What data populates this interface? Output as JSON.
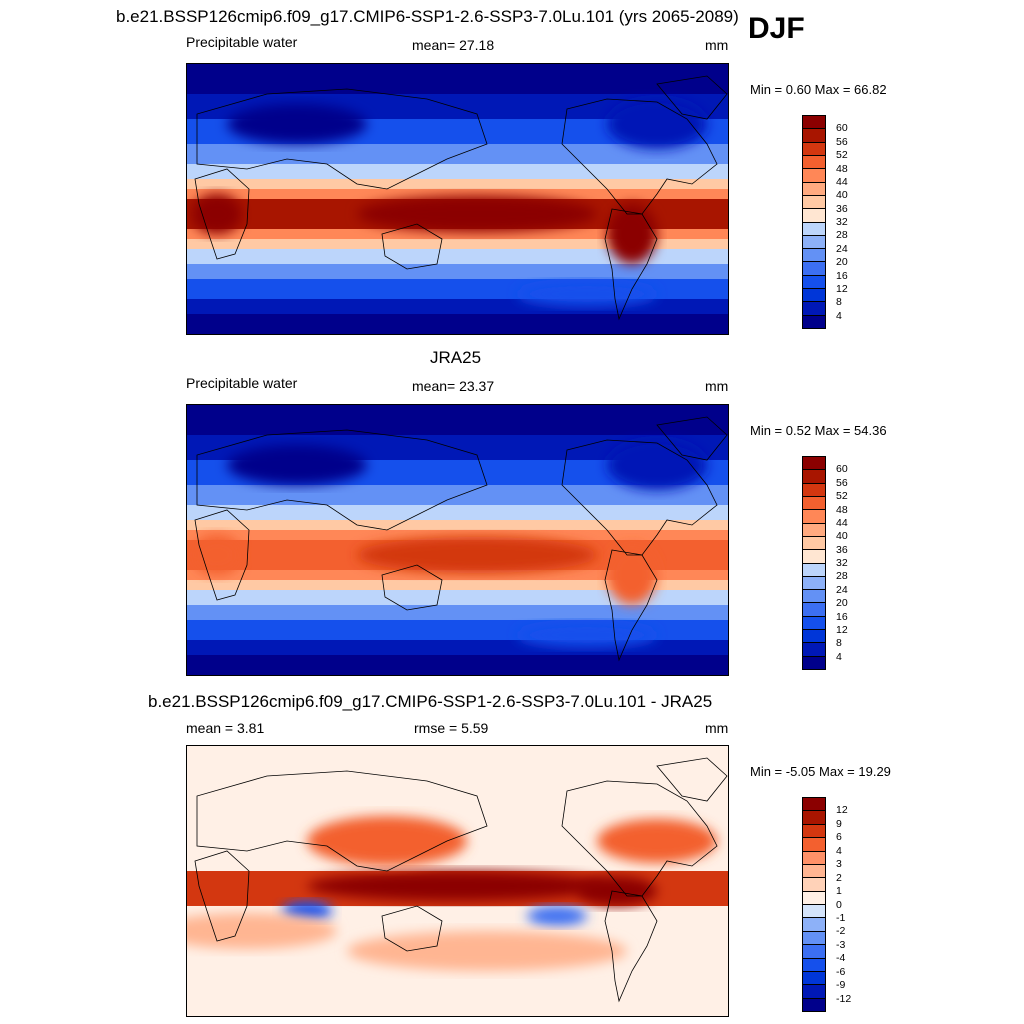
{
  "season": "DJF",
  "panels": [
    {
      "id": "model",
      "title": "b.e21.BSSP126cmip6.f09_g17.CMIP6-SSP1-2.6-SSP3-7.0Lu.101 (yrs 2065-2089)",
      "left_text": "Precipitable water",
      "center_text": "mean=  27.18",
      "units": "mm",
      "minmax": "Min =   0.60 Max =  66.82",
      "levels": [
        "4",
        "8",
        "12",
        "16",
        "20",
        "24",
        "28",
        "32",
        "36",
        "40",
        "44",
        "48",
        "52",
        "56",
        "60"
      ],
      "colors": [
        "#00008b",
        "#0018b6",
        "#0036d8",
        "#1550ec",
        "#3c6ff2",
        "#6391f5",
        "#8db1f8",
        "#bcd5fb",
        "#ffe6d2",
        "#ffc9a4",
        "#ffaa80",
        "#ff8757",
        "#f3602f",
        "#d33710",
        "#a81500",
        "#8b0000"
      ]
    },
    {
      "id": "obs",
      "title": "JRA25",
      "left_text": "Precipitable water",
      "center_text": "mean=  23.37",
      "units": "mm",
      "minmax": "Min =   0.52 Max =  54.36",
      "levels": [
        "4",
        "8",
        "12",
        "16",
        "20",
        "24",
        "28",
        "32",
        "36",
        "40",
        "44",
        "48",
        "52",
        "56",
        "60"
      ],
      "colors": [
        "#00008b",
        "#0018b6",
        "#0036d8",
        "#1550ec",
        "#3c6ff2",
        "#6391f5",
        "#8db1f8",
        "#bcd5fb",
        "#ffe6d2",
        "#ffc9a4",
        "#ffaa80",
        "#ff8757",
        "#f3602f",
        "#d33710",
        "#a81500",
        "#8b0000"
      ]
    },
    {
      "id": "diff",
      "title": "b.e21.BSSP126cmip6.f09_g17.CMIP6-SSP1-2.6-SSP3-7.0Lu.101 - JRA25",
      "left_text": "mean =   3.81",
      "center_text": "rmse =   5.59",
      "units": "mm",
      "minmax": "Min =  -5.05 Max =  19.29",
      "levels": [
        "-12",
        "-9",
        "-6",
        "-4",
        "-3",
        "-2",
        "-1",
        "0",
        "1",
        "2",
        "3",
        "4",
        "6",
        "9",
        "12"
      ],
      "colors": [
        "#00008b",
        "#0018b6",
        "#0036d8",
        "#1550ec",
        "#3c6ff2",
        "#6391f5",
        "#8db1f8",
        "#d4e4fb",
        "#fff0e6",
        "#ffd2b8",
        "#ffb592",
        "#ff9168",
        "#f3602f",
        "#d33710",
        "#a81500",
        "#8b0000"
      ]
    }
  ]
}
